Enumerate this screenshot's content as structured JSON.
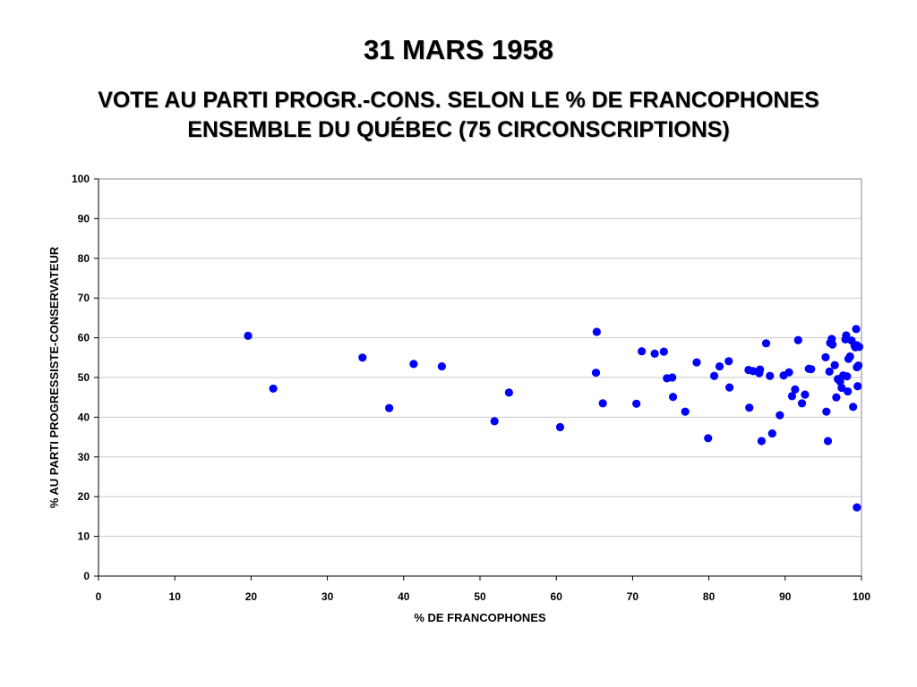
{
  "title": "31 MARS 1958",
  "subtitle_line1": "VOTE AU PARTI PROGR.-CONS. SELON LE % DE FRANCOPHONES",
  "subtitle_line2": "ENSEMBLE DU QUÉBEC (75 CIRCONSCRIPTIONS)",
  "chart_data": {
    "type": "scatter",
    "xlabel": "% DE FRANCOPHONES",
    "ylabel": "% AU PARTI PROGRESSISTE-CONSERVATEUR",
    "xlim": [
      0,
      100
    ],
    "ylim": [
      0,
      100
    ],
    "xticks": [
      0,
      10,
      20,
      30,
      40,
      50,
      60,
      70,
      80,
      90,
      100
    ],
    "yticks": [
      0,
      10,
      20,
      30,
      40,
      50,
      60,
      70,
      80,
      90,
      100
    ],
    "grid": "horizontal",
    "marker_color": "#0000ff",
    "series": [
      {
        "points": [
          [
            19.6,
            60.5
          ],
          [
            22.9,
            47.2
          ],
          [
            34.6,
            55.0
          ],
          [
            38.1,
            42.3
          ],
          [
            41.3,
            53.4
          ],
          [
            45.0,
            52.8
          ],
          [
            51.9,
            39.0
          ],
          [
            53.8,
            46.2
          ],
          [
            60.5,
            37.5
          ],
          [
            65.3,
            61.5
          ],
          [
            65.2,
            51.2
          ],
          [
            66.1,
            43.5
          ],
          [
            70.5,
            43.4
          ],
          [
            71.2,
            56.6
          ],
          [
            72.9,
            56.0
          ],
          [
            74.1,
            56.5
          ],
          [
            74.5,
            49.8
          ],
          [
            75.2,
            50.0
          ],
          [
            75.3,
            45.1
          ],
          [
            76.9,
            41.4
          ],
          [
            78.4,
            53.8
          ],
          [
            79.9,
            34.7
          ],
          [
            80.7,
            50.4
          ],
          [
            81.4,
            52.8
          ],
          [
            82.6,
            54.1
          ],
          [
            82.7,
            47.5
          ],
          [
            85.2,
            51.9
          ],
          [
            85.3,
            42.4
          ],
          [
            85.8,
            51.6
          ],
          [
            86.6,
            51.1
          ],
          [
            86.7,
            52.0
          ],
          [
            86.9,
            34.0
          ],
          [
            87.5,
            58.6
          ],
          [
            88.0,
            50.4
          ],
          [
            88.3,
            35.9
          ],
          [
            89.3,
            40.5
          ],
          [
            89.8,
            50.5
          ],
          [
            90.5,
            51.3
          ],
          [
            90.9,
            45.3
          ],
          [
            91.3,
            47.0
          ],
          [
            91.7,
            59.4
          ],
          [
            92.2,
            43.5
          ],
          [
            92.6,
            45.7
          ],
          [
            93.1,
            52.2
          ],
          [
            93.4,
            52.1
          ],
          [
            95.3,
            55.1
          ],
          [
            95.4,
            41.4
          ],
          [
            95.6,
            34.0
          ],
          [
            95.8,
            51.5
          ],
          [
            95.9,
            58.7
          ],
          [
            96.1,
            59.7
          ],
          [
            96.2,
            58.3
          ],
          [
            96.5,
            53.1
          ],
          [
            96.7,
            45.0
          ],
          [
            96.9,
            49.6
          ],
          [
            97.2,
            49.0
          ],
          [
            97.4,
            47.4
          ],
          [
            97.6,
            50.5
          ],
          [
            97.9,
            59.6
          ],
          [
            98.0,
            60.6
          ],
          [
            98.1,
            50.3
          ],
          [
            98.2,
            46.5
          ],
          [
            98.3,
            54.7
          ],
          [
            98.5,
            55.3
          ],
          [
            98.7,
            59.3
          ],
          [
            98.9,
            42.6
          ],
          [
            99.1,
            58.0
          ],
          [
            99.2,
            57.6
          ],
          [
            99.3,
            62.2
          ],
          [
            99.4,
            58.1
          ],
          [
            99.4,
            52.6
          ],
          [
            99.5,
            47.8
          ],
          [
            99.6,
            53.0
          ],
          [
            99.7,
            57.7
          ],
          [
            99.4,
            17.3
          ]
        ]
      }
    ]
  }
}
